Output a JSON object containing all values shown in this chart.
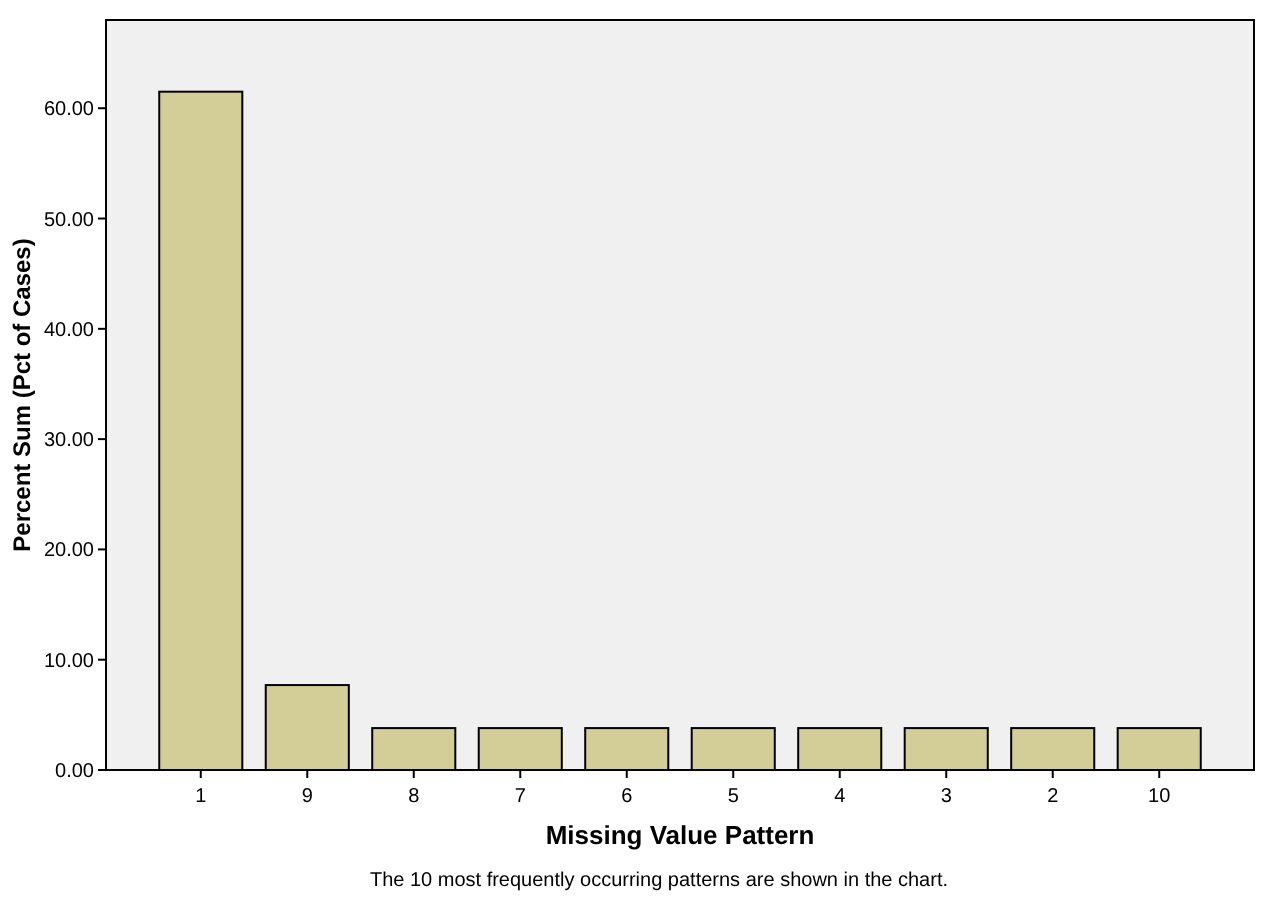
{
  "chart_data": {
    "type": "bar",
    "xlabel": "Missing Value Pattern",
    "ylabel": "Percent Sum (Pct of Cases)",
    "categories": [
      "1",
      "9",
      "8",
      "7",
      "6",
      "5",
      "4",
      "3",
      "2",
      "10"
    ],
    "values": [
      61.5,
      7.7,
      3.8,
      3.8,
      3.8,
      3.8,
      3.8,
      3.8,
      3.8,
      3.8
    ],
    "color": "#d3ce98",
    "ylim": [
      0,
      68
    ],
    "yticks": [
      {
        "value": 0,
        "label": "0.00"
      },
      {
        "value": 10,
        "label": "10.00"
      },
      {
        "value": 20,
        "label": "20.00"
      },
      {
        "value": 30,
        "label": "30.00"
      },
      {
        "value": 40,
        "label": "40.00"
      },
      {
        "value": 50,
        "label": "50.00"
      },
      {
        "value": 60,
        "label": "60.00"
      }
    ],
    "grid": false,
    "annotations": [
      "The 10 most frequently occurring patterns are shown in the chart."
    ]
  }
}
